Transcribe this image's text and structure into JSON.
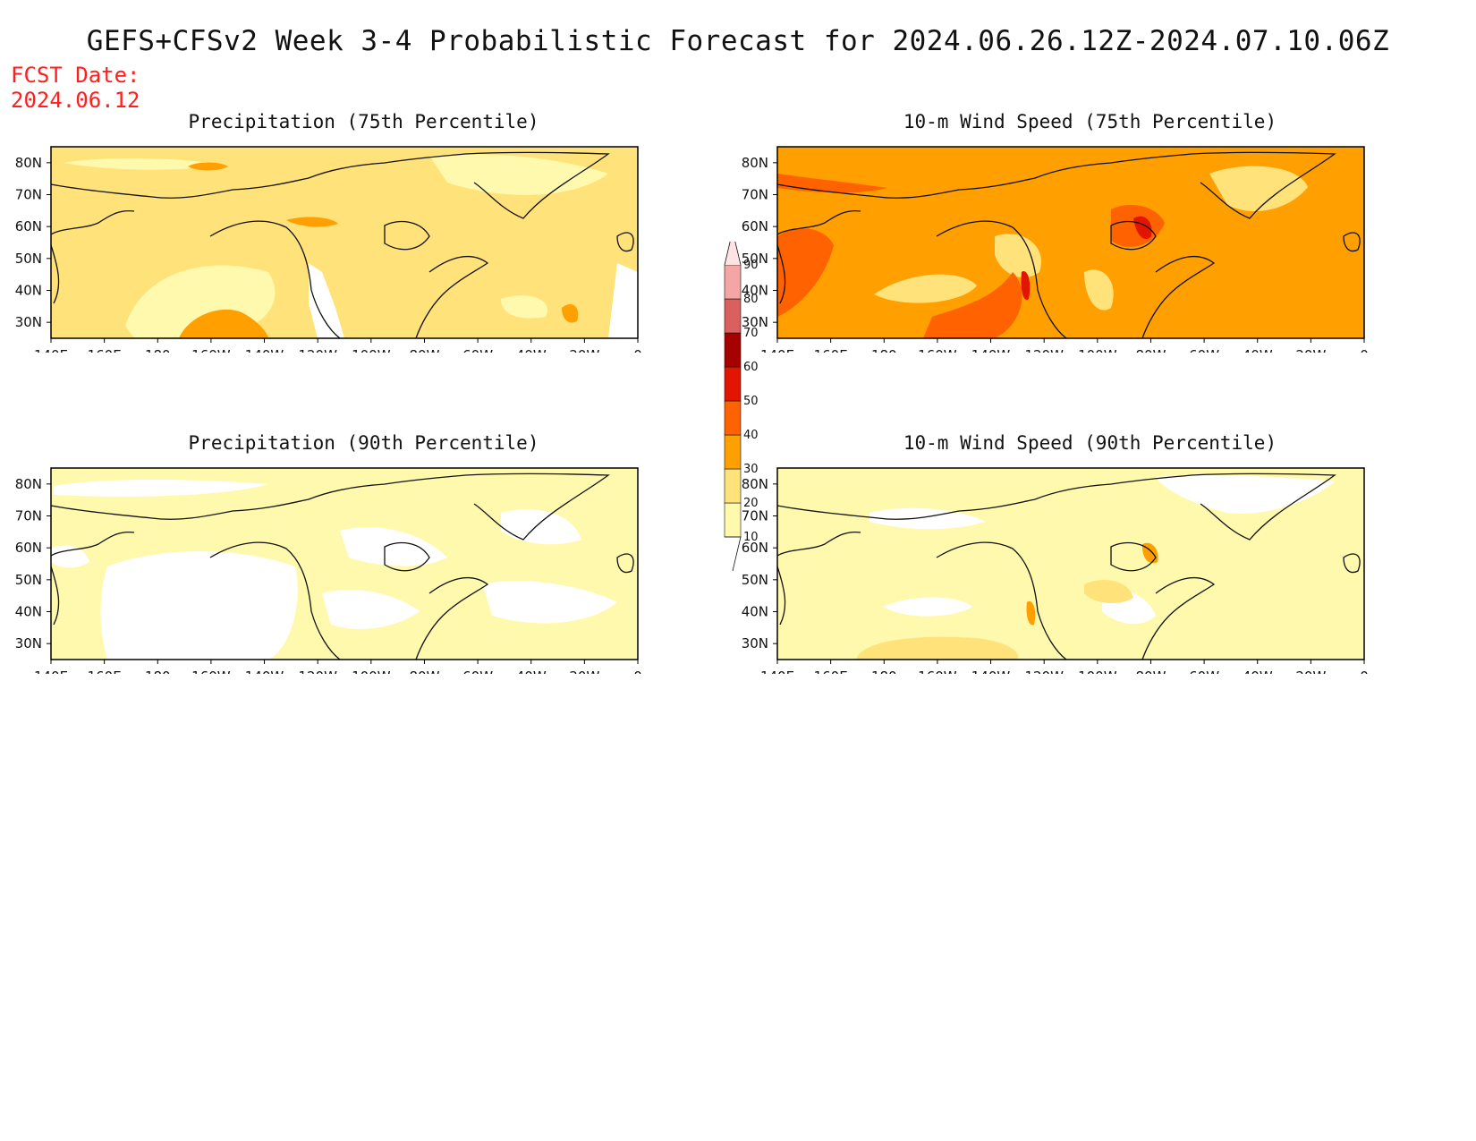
{
  "title": "GEFS+CFSv2 Week 3-4 Probabilistic Forecast for 2024.06.26.12Z-2024.07.10.06Z",
  "fcst_date_label": "FCST Date:",
  "fcst_date_value": "2024.06.12",
  "map_axes": {
    "lon_labels": [
      "140E",
      "160E",
      "180",
      "160W",
      "140W",
      "120W",
      "100W",
      "80W",
      "60W",
      "40W",
      "20W",
      "0"
    ],
    "lat_labels": [
      "80N",
      "70N",
      "60N",
      "50N",
      "40N",
      "30N"
    ]
  },
  "panels": [
    {
      "id": "precip-75",
      "title": "Precipitation (75th Percentile)",
      "background_level": 20
    },
    {
      "id": "wind-75",
      "title": "10-m Wind Speed (75th Percentile)",
      "background_level": 30
    },
    {
      "id": "precip-90",
      "title": "Precipitation (90th Percentile)",
      "background_level": 10
    },
    {
      "id": "wind-90",
      "title": "10-m Wind Speed (90th Percentile)",
      "background_level": 10
    }
  ],
  "colorbar": {
    "levels": [
      "10",
      "20",
      "30",
      "40",
      "50",
      "60",
      "70",
      "80",
      "90"
    ],
    "colors": [
      "#fff9ae",
      "#ffe27a",
      "#ffa000",
      "#ff6200",
      "#e21500",
      "#a60000",
      "#da6060",
      "#f4a6a6",
      "#ffe3e3"
    ]
  }
}
